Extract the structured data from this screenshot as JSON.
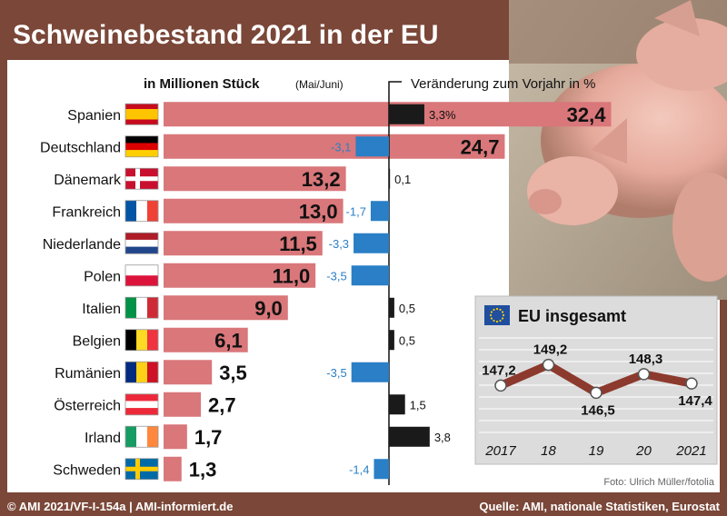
{
  "title": "Schweinebestand 2021 in der EU",
  "subtitle_left": "in Millionen Stück",
  "subtitle_left_note": "(Mai/Juni)",
  "subtitle_right": "Veränderung zum Vorjahr in %",
  "photo_credit": "Foto: Ulrich Müller/fotolia",
  "footer_left": "© AMI 2021/VF-I-154a | AMI-informiert.de",
  "footer_right": "Quelle: AMI, nationale Statistiken, Eurostat",
  "colors": {
    "header": "#7a4738",
    "bar_stock": "#d9777a",
    "change_positive": "#1a1a1a",
    "change_negative": "#2a7fc6",
    "eu_line": "#8c3a2d"
  },
  "chart_data": [
    {
      "type": "bar",
      "orientation": "horizontal",
      "categories": [
        "Spanien",
        "Deutschland",
        "Dänemark",
        "Frankreich",
        "Niederlande",
        "Polen",
        "Italien",
        "Belgien",
        "Rumänien",
        "Österreich",
        "Irland",
        "Schweden"
      ],
      "flags": [
        "es",
        "de",
        "dk",
        "fr",
        "nl",
        "pl",
        "it",
        "be",
        "ro",
        "at",
        "ie",
        "se"
      ],
      "series": [
        {
          "values": [
            32.4,
            24.7,
            13.2,
            13.0,
            11.5,
            11.0,
            9.0,
            6.1,
            3.5,
            2.7,
            1.7,
            1.3
          ]
        }
      ],
      "value_labels": [
        "32,4",
        "24,7",
        "13,2",
        "13,0",
        "11,5",
        "11,0",
        "9,0",
        "6,1",
        "3,5",
        "2,7",
        "1,7",
        "1,3"
      ]
    },
    {
      "type": "bar",
      "orientation": "horizontal",
      "categories": [
        "Spanien",
        "Deutschland",
        "Dänemark",
        "Frankreich",
        "Niederlande",
        "Polen",
        "Italien",
        "Belgien",
        "Rumänien",
        "Österreich",
        "Irland",
        "Schweden"
      ],
      "series": [
        {
          "values": [
            3.3,
            -3.1,
            0.1,
            -1.7,
            -3.3,
            -3.5,
            0.5,
            0.5,
            -3.5,
            1.5,
            3.8,
            -1.4
          ]
        }
      ],
      "value_labels": [
        "3,3%",
        "-3,1",
        "0,1",
        "-1,7",
        "-3,3",
        "-3,5",
        "0,5",
        "0,5",
        "-3,5",
        "1,5",
        "3,8",
        "-1,4"
      ]
    },
    {
      "type": "line",
      "title": "EU insgesamt",
      "x": [
        "2017",
        "18",
        "19",
        "20",
        "2021"
      ],
      "series": [
        {
          "values": [
            147.2,
            149.2,
            146.5,
            148.3,
            147.4
          ]
        }
      ],
      "value_labels": [
        "147,2",
        "149,2",
        "146,5",
        "148,3",
        "147,4"
      ]
    }
  ]
}
